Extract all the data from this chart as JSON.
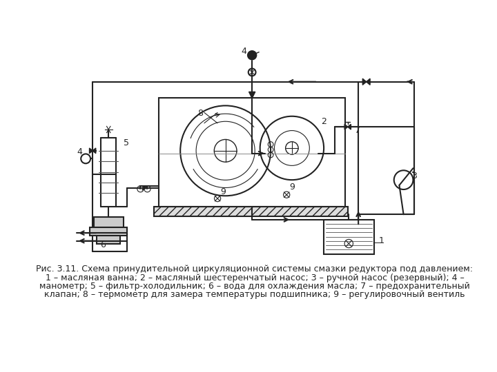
{
  "caption_line1": "Рис. 3.11. Схема принудительной циркуляционной системы смазки редуктора под давлением:",
  "caption_line2": "1 – масляная ванна; 2 – масляный шестеренчатый насос; 3 – ручной насос (резервный); 4 –",
  "caption_line3": "манометр; 5 – фильтр-холодильник; 6 – вода для охлаждения масла; 7 – предохранительный",
  "caption_line4": "клапан; 8 – термометр для замера температуры подшипника; 9 – регулировочный вентиль",
  "bg_color": "#ffffff",
  "line_color": "#222222",
  "caption_fontsize": 9.0,
  "label_fontsize": 9
}
